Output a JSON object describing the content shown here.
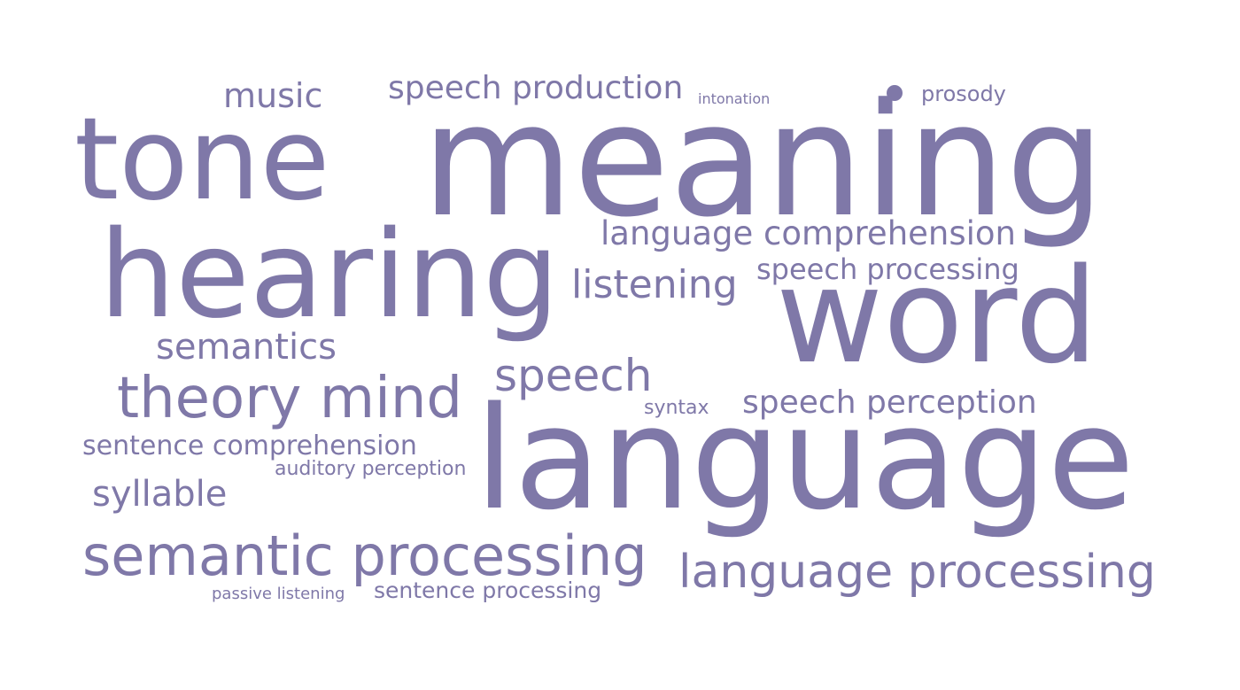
{
  "colors": {
    "word_color": "#7f78a8",
    "background": "#ffffff"
  },
  "cloud": {
    "bullet_icon": "dot-icon",
    "words": [
      {
        "text": "music"
      },
      {
        "text": "speech production"
      },
      {
        "text": "intonation"
      },
      {
        "text": "prosody"
      },
      {
        "text": "tone"
      },
      {
        "text": "meaning"
      },
      {
        "text": "language comprehension"
      },
      {
        "text": "hearing"
      },
      {
        "text": "speech processing"
      },
      {
        "text": "listening"
      },
      {
        "text": "word"
      },
      {
        "text": "semantics"
      },
      {
        "text": "speech"
      },
      {
        "text": "theory mind"
      },
      {
        "text": "syntax"
      },
      {
        "text": "speech perception"
      },
      {
        "text": "sentence comprehension"
      },
      {
        "text": "auditory perception"
      },
      {
        "text": "language"
      },
      {
        "text": "syllable"
      },
      {
        "text": "semantic processing"
      },
      {
        "text": "language processing"
      },
      {
        "text": "passive listening"
      },
      {
        "text": "sentence processing"
      }
    ]
  }
}
